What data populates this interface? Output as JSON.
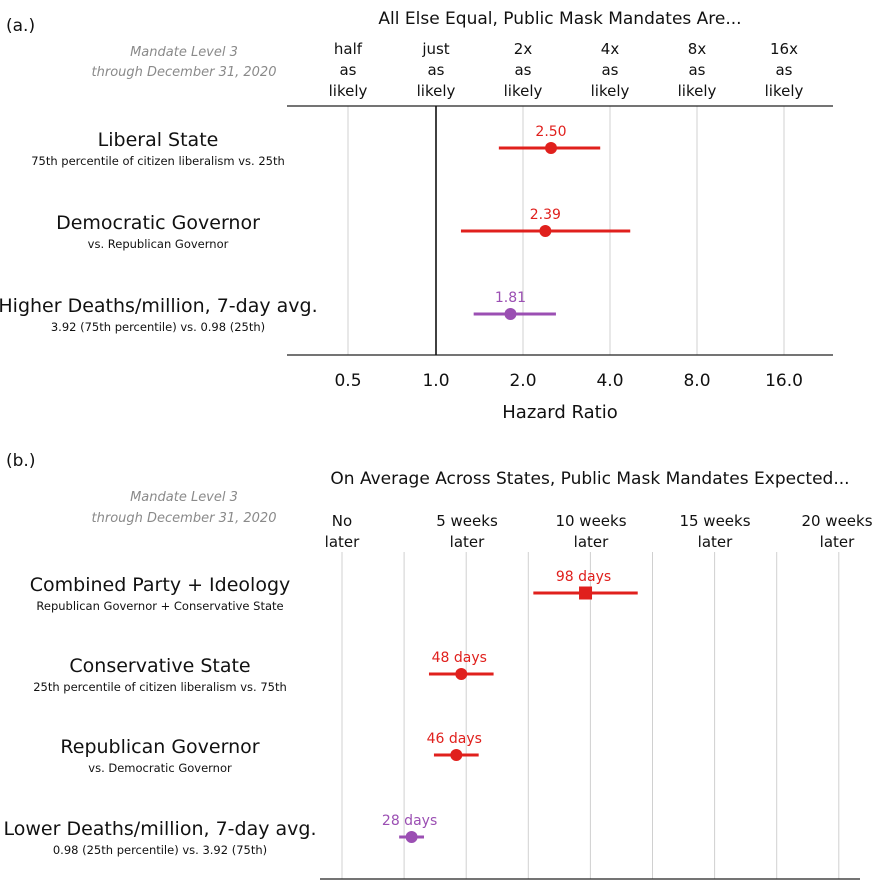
{
  "colors": {
    "red": "#e0201d",
    "purple": "#9b4fb3",
    "grid": "#d0d0d0",
    "axis": "#222222"
  },
  "chart_data": [
    {
      "type": "scatter",
      "panel_label": "(a.)",
      "title": "All Else Equal, Public Mask Mandates Are...",
      "note_line1": "Mandate Level 3",
      "note_line2": "through December 31, 2020",
      "column_headers": [
        [
          "half",
          "as",
          "likely"
        ],
        [
          "just",
          "as",
          "likely"
        ],
        [
          "2x",
          "as",
          "likely"
        ],
        [
          "4x",
          "as",
          "likely"
        ],
        [
          "8x",
          "as",
          "likely"
        ],
        [
          "16x",
          "as",
          "likely"
        ]
      ],
      "tick_labels": [
        "0.5",
        "1.0",
        "2.0",
        "4.0",
        "8.0",
        "16.0"
      ],
      "xlabel": "Hazard Ratio",
      "log_scale": true,
      "xlim": [
        0.35,
        32
      ],
      "rows": [
        {
          "label": "Liberal State",
          "sub": "75th percentile of citizen liberalism vs. 25th",
          "value": 2.5,
          "value_label": "2.50",
          "lo": 1.65,
          "hi": 3.7,
          "color": "red",
          "marker": "circle"
        },
        {
          "label": "Democratic Governor",
          "sub": "vs. Republican Governor",
          "value": 2.39,
          "value_label": "2.39",
          "lo": 1.22,
          "hi": 4.7,
          "color": "red",
          "marker": "circle"
        },
        {
          "label": "Higher Deaths/million, 7-day avg.",
          "sub": "3.92 (75th percentile) vs. 0.98 (25th)",
          "value": 1.81,
          "value_label": "1.81",
          "lo": 1.35,
          "hi": 2.6,
          "color": "purple",
          "marker": "circle"
        }
      ]
    },
    {
      "type": "scatter",
      "panel_label": "(b.)",
      "title": "On Average Across States, Public Mask Mandates Expected...",
      "note_line1": "Mandate Level 3",
      "note_line2": "through December 31, 2020",
      "column_headers": [
        [
          "No",
          "later"
        ],
        [
          "5 weeks",
          "later"
        ],
        [
          "10 weeks",
          "later"
        ],
        [
          "15 weeks",
          "later"
        ],
        [
          "20 weeks",
          "later"
        ]
      ],
      "xlabel": "",
      "xlim": [
        0,
        140
      ],
      "rows": [
        {
          "label": "Combined Party + Ideology",
          "sub": "Republican Governor + Conservative State",
          "value": 98,
          "value_label": "98 days",
          "lo": 77,
          "hi": 119,
          "color": "red",
          "marker": "square"
        },
        {
          "label": "Conservative State",
          "sub": "25th percentile of citizen liberalism vs. 75th",
          "value": 48,
          "value_label": "48 days",
          "lo": 35,
          "hi": 61,
          "color": "red",
          "marker": "circle"
        },
        {
          "label": "Republican Governor",
          "sub": "vs. Democratic Governor",
          "value": 46,
          "value_label": "46 days",
          "lo": 37,
          "hi": 55,
          "color": "red",
          "marker": "circle"
        },
        {
          "label": "Lower Deaths/million, 7-day avg.",
          "sub": "0.98 (25th percentile) vs. 3.92 (75th)",
          "value": 28,
          "value_label": "28 days",
          "lo": 23,
          "hi": 33,
          "color": "purple",
          "marker": "circle"
        }
      ]
    }
  ]
}
